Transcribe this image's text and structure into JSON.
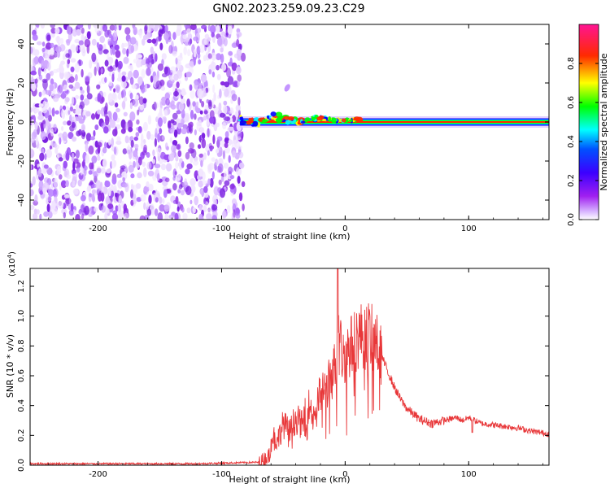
{
  "title": "GN02.2023.259.09.23.C29",
  "chart_data": [
    {
      "type": "heatmap",
      "name": "spectrogram",
      "xlabel": "Height of straight line (km)",
      "ylabel": "Frequency (Hz)",
      "xlim": [
        -255,
        165
      ],
      "ylim": [
        -50,
        50
      ],
      "xticks": [
        -200,
        -100,
        0,
        100
      ],
      "xtick_labels": [
        "-200",
        "-100",
        "0",
        "100"
      ],
      "yticks": [
        -40,
        -20,
        0,
        20,
        40
      ],
      "ytick_labels": [
        "-40",
        "-20",
        "0",
        "20",
        "40"
      ],
      "noise_region_x": [
        -255,
        -85
      ],
      "signal_onset_x": -85,
      "signal_frequency_hz": 0,
      "colorbar": {
        "label": "Normalized spectral amplitude",
        "range": [
          0,
          1
        ],
        "ticks": [
          0.0,
          0.2,
          0.4,
          0.6,
          0.8
        ],
        "tick_labels": [
          "0.0",
          "0.2",
          "0.4",
          "0.6",
          "0.8"
        ],
        "stops": [
          "#ffffff",
          "#a020f0",
          "#3c00ff",
          "#0000ff",
          "#00ffff",
          "#00ff00",
          "#ffff00",
          "#ff0000",
          "#ff1493"
        ]
      }
    },
    {
      "type": "line",
      "name": "snr",
      "xlabel": "Height of straight line (km)",
      "ylabel": "SNR (10 * v/v)",
      "scale_label": "(x10",
      "scale_exp": "4",
      "scale_close": ")",
      "xlim": [
        -255,
        165
      ],
      "ylim": [
        0,
        1.32
      ],
      "xticks": [
        -200,
        -100,
        0,
        100
      ],
      "xtick_labels": [
        "-200",
        "-100",
        "0",
        "100"
      ],
      "yticks": [
        0.0,
        0.2,
        0.4,
        0.6,
        0.8,
        1.0,
        1.2
      ],
      "ytick_labels": [
        "0.0",
        "0.2",
        "0.4",
        "0.6",
        "0.8",
        "1.0",
        "1.2"
      ],
      "line_color": "#e8383a",
      "envelope": {
        "x": [
          -255,
          -120,
          -70,
          -62,
          -58,
          -55,
          -50,
          -45,
          -40,
          -35,
          -30,
          -25,
          -20,
          -15,
          -10,
          -7,
          -5,
          -2,
          0,
          5,
          10,
          15,
          20,
          25,
          30,
          35,
          40,
          45,
          50,
          60,
          70,
          80,
          90,
          95,
          100,
          110,
          120,
          130,
          140,
          150,
          165
        ],
        "y": [
          0.01,
          0.01,
          0.02,
          0.06,
          0.2,
          0.16,
          0.28,
          0.22,
          0.32,
          0.27,
          0.4,
          0.35,
          0.48,
          0.52,
          0.62,
          0.7,
          0.85,
          0.72,
          0.75,
          0.8,
          0.86,
          0.88,
          0.87,
          0.82,
          0.72,
          0.62,
          0.52,
          0.44,
          0.38,
          0.31,
          0.28,
          0.3,
          0.32,
          0.3,
          0.32,
          0.28,
          0.27,
          0.26,
          0.25,
          0.23,
          0.21
        ]
      },
      "spike_x": -6,
      "spike_y": 1.32
    }
  ]
}
